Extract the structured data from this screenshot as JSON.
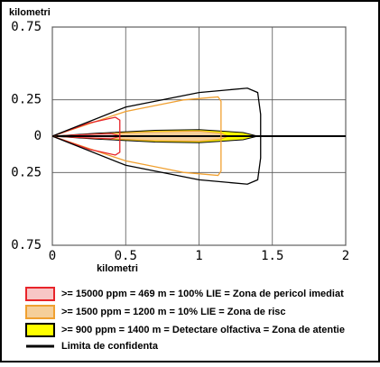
{
  "chart_data": {
    "type": "threat-zone",
    "x_label": "kilometri",
    "y_label": "kilometri",
    "xlim": [
      0,
      2
    ],
    "xticks": [
      0,
      0.5,
      1,
      1.5,
      2
    ],
    "ylim": [
      -0.75,
      0.75
    ],
    "yticks": [
      {
        "value": 0.75,
        "label": "0.75"
      },
      {
        "value": 0.25,
        "label": "0.25"
      },
      0,
      {
        "value": -0.25,
        "label": "0.25"
      },
      {
        "value": -0.75,
        "label": "0.75"
      }
    ],
    "grid": true,
    "series": [
      {
        "name": ">= 900 ppm = 1400 m = Detectare olfactiva = Zona de atentie",
        "color": "#000000",
        "fill": "#ffff00",
        "x": [
          0,
          0.3,
          0.7,
          1.0,
          1.3,
          1.4,
          1.3,
          1.0,
          0.7,
          0.3,
          0
        ],
        "y": [
          0,
          0.02,
          0.04,
          0.045,
          0.025,
          0,
          -0.025,
          -0.045,
          -0.04,
          -0.02,
          0
        ]
      },
      {
        "name": ">= 1500 ppm = 1200 m = 10% LIE = Zona de risc",
        "color": "#f0a030",
        "fill": "#f5cf9a",
        "x": [
          0,
          0.3,
          0.7,
          1.0,
          1.15,
          1.2,
          1.15,
          1.0,
          0.7,
          0.3,
          0
        ],
        "y": [
          0,
          0.015,
          0.03,
          0.035,
          0.02,
          0,
          -0.02,
          -0.035,
          -0.03,
          -0.015,
          0
        ],
        "outline_x": [
          0,
          0.5,
          0.9,
          1.13,
          1.15,
          1.15,
          1.13,
          0.9,
          0.5,
          0
        ],
        "outline_y": [
          0,
          0.17,
          0.25,
          0.27,
          0.24,
          -0.24,
          -0.27,
          -0.25,
          -0.17,
          0
        ]
      },
      {
        "name": ">= 15000 ppm = 469 m = 100% LIE = Zona de pericol imediat",
        "color": "#e8242a",
        "fill": "#f7c6c6",
        "x": [
          0,
          0.2,
          0.4,
          0.47,
          0.4,
          0.2,
          0
        ],
        "y": [
          0,
          0.01,
          0.018,
          0,
          -0.018,
          -0.01,
          0
        ],
        "outline_x": [
          0,
          0.25,
          0.43,
          0.46,
          0.46,
          0.43,
          0.25,
          0
        ],
        "outline_y": [
          0,
          0.09,
          0.13,
          0.11,
          -0.11,
          -0.13,
          -0.09,
          0
        ]
      },
      {
        "name": "Limita de confidenta",
        "color": "#000000",
        "outline_x": [
          0,
          0.5,
          1.0,
          1.33,
          1.4,
          1.42,
          1.42,
          1.4,
          1.33,
          1.0,
          0.5,
          0
        ],
        "outline_y": [
          0,
          0.2,
          0.3,
          0.33,
          0.3,
          0.15,
          -0.15,
          -0.3,
          -0.33,
          -0.3,
          -0.2,
          0
        ]
      }
    ],
    "legend_order": [
      2,
      1,
      0,
      3
    ]
  }
}
